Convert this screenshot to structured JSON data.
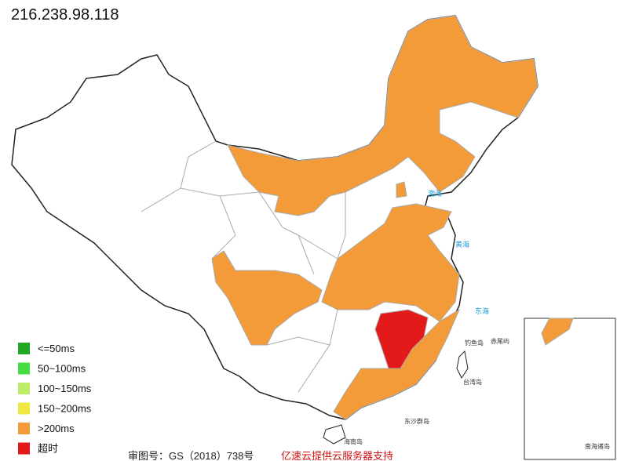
{
  "title": "216.238.98.118",
  "legend": [
    {
      "label": "<=50ms",
      "color": "#22a722"
    },
    {
      "label": "50~100ms",
      "color": "#44dd44"
    },
    {
      "label": "100~150ms",
      "color": "#bbee66"
    },
    {
      "label": "150~200ms",
      "color": "#f0e840"
    },
    {
      "label": ">200ms",
      "color": "#f29b38"
    },
    {
      "label": "超时",
      "color": "#e31a1a"
    }
  ],
  "map_labels": {
    "bohai": "渤海",
    "yellow_sea": "黄海",
    "east_sea": "东海",
    "diaoyu": "钓鱼岛",
    "chiwei": "赤尾屿",
    "taiwan": "台湾岛",
    "dongsha": "东沙群岛",
    "hainan": "海南岛",
    "south_sea_islands": "南海诸岛"
  },
  "footer": {
    "approval": "审图号：GS（2018）738号",
    "sponsor": "亿速云提供云服务器支持"
  }
}
